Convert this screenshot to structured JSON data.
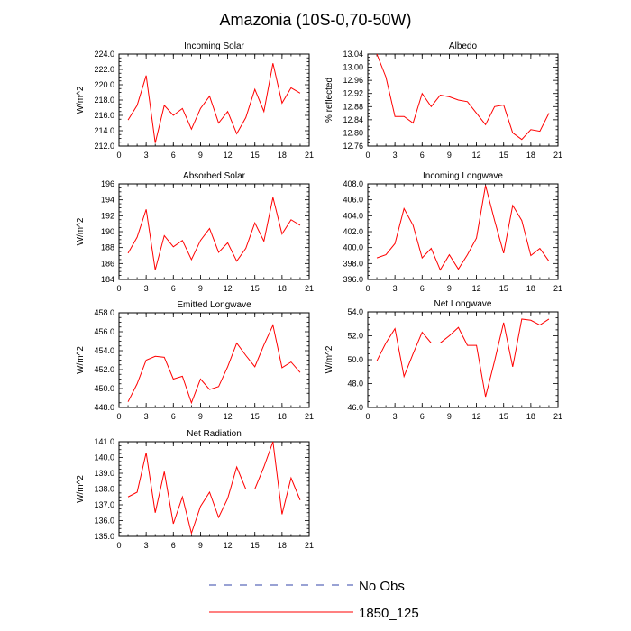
{
  "title": "Amazonia (10S-0,70-50W)",
  "legend": [
    {
      "label": "No Obs",
      "color": "#3344aa",
      "dash": true
    },
    {
      "label": "1850_125",
      "color": "#ff0000",
      "dash": false
    }
  ],
  "chart_data": [
    {
      "type": "line",
      "title": "Incoming Solar",
      "ylabel": "W/m^2",
      "xlim": [
        0,
        21
      ],
      "xticks": [
        "0",
        "3",
        "6",
        "9",
        "12",
        "15",
        "18",
        "21"
      ],
      "ylim": [
        212,
        224
      ],
      "yticks": [
        "212.0",
        "214.0",
        "216.0",
        "218.0",
        "220.0",
        "222.0",
        "224.0"
      ],
      "series": [
        {
          "color": "#ff0000",
          "x": [
            1,
            2,
            3,
            4,
            5,
            6,
            7,
            8,
            9,
            10,
            11,
            12,
            13,
            14,
            15,
            16,
            17,
            18,
            19,
            20
          ],
          "y": [
            215.4,
            217.3,
            221.2,
            212.4,
            217.3,
            216.0,
            216.9,
            214.2,
            216.9,
            218.5,
            215.0,
            216.5,
            213.6,
            215.7,
            219.4,
            216.5,
            222.8,
            217.6,
            219.6,
            218.9
          ]
        }
      ]
    },
    {
      "type": "line",
      "title": "Albedo",
      "ylabel": "% reflected",
      "xlim": [
        0,
        21
      ],
      "xticks": [
        "0",
        "3",
        "6",
        "9",
        "12",
        "15",
        "18",
        "21"
      ],
      "ylim": [
        12.76,
        13.04
      ],
      "yticks": [
        "12.76",
        "12.80",
        "12.84",
        "12.88",
        "12.92",
        "12.96",
        "13.00",
        "13.04"
      ],
      "series": [
        {
          "color": "#ff0000",
          "x": [
            1,
            2,
            3,
            4,
            5,
            6,
            7,
            8,
            9,
            10,
            11,
            12,
            13,
            14,
            15,
            16,
            17,
            18,
            19,
            20
          ],
          "y": [
            13.04,
            12.97,
            12.85,
            12.85,
            12.83,
            12.92,
            12.88,
            12.915,
            12.91,
            12.9,
            12.895,
            12.86,
            12.825,
            12.88,
            12.885,
            12.8,
            12.78,
            12.81,
            12.805,
            12.86
          ]
        }
      ]
    },
    {
      "type": "line",
      "title": "Absorbed Solar",
      "ylabel": "W/m^2",
      "xlim": [
        0,
        21
      ],
      "xticks": [
        "0",
        "3",
        "6",
        "9",
        "12",
        "15",
        "18",
        "21"
      ],
      "ylim": [
        184,
        196
      ],
      "yticks": [
        "184",
        "186",
        "188",
        "190",
        "192",
        "194",
        "196"
      ],
      "series": [
        {
          "color": "#ff0000",
          "x": [
            1,
            2,
            3,
            4,
            5,
            6,
            7,
            8,
            9,
            10,
            11,
            12,
            13,
            14,
            15,
            16,
            17,
            18,
            19,
            20
          ],
          "y": [
            187.3,
            189.3,
            192.8,
            185.2,
            189.5,
            188.1,
            188.9,
            186.5,
            188.9,
            190.4,
            187.4,
            188.6,
            186.3,
            187.9,
            191.1,
            188.8,
            194.3,
            189.7,
            191.5,
            190.8
          ]
        }
      ]
    },
    {
      "type": "line",
      "title": "Incoming Longwave",
      "ylabel": "",
      "xlim": [
        0,
        21
      ],
      "xticks": [
        "0",
        "3",
        "6",
        "9",
        "12",
        "15",
        "18",
        "21"
      ],
      "ylim": [
        396,
        408
      ],
      "yticks": [
        "396.0",
        "398.0",
        "400.0",
        "402.0",
        "404.0",
        "406.0",
        "408.0"
      ],
      "series": [
        {
          "color": "#ff0000",
          "x": [
            1,
            2,
            3,
            4,
            5,
            6,
            7,
            8,
            9,
            10,
            11,
            12,
            13,
            14,
            15,
            16,
            17,
            18,
            19,
            20
          ],
          "y": [
            398.7,
            399.1,
            400.5,
            404.9,
            402.8,
            398.7,
            399.9,
            397.2,
            399.1,
            397.3,
            399.1,
            401.2,
            407.8,
            403.4,
            399.3,
            405.3,
            403.4,
            399.0,
            399.9,
            398.3
          ]
        }
      ]
    },
    {
      "type": "line",
      "title": "Emitted Longwave",
      "ylabel": "W/m^2",
      "xlim": [
        0,
        21
      ],
      "xticks": [
        "0",
        "3",
        "6",
        "9",
        "12",
        "15",
        "18",
        "21"
      ],
      "ylim": [
        448,
        458
      ],
      "yticks": [
        "448.0",
        "450.0",
        "452.0",
        "454.0",
        "456.0",
        "458.0"
      ],
      "series": [
        {
          "color": "#ff0000",
          "x": [
            1,
            2,
            3,
            4,
            5,
            6,
            7,
            8,
            9,
            10,
            11,
            12,
            13,
            14,
            15,
            16,
            17,
            18,
            19,
            20
          ],
          "y": [
            448.6,
            450.5,
            453.0,
            453.4,
            453.3,
            451.0,
            451.3,
            448.5,
            451.0,
            449.9,
            450.2,
            452.3,
            454.8,
            453.5,
            452.3,
            454.6,
            456.7,
            452.2,
            452.8,
            451.7
          ]
        }
      ]
    },
    {
      "type": "line",
      "title": "Net Longwave",
      "ylabel": "W/m^2",
      "xlim": [
        0,
        21
      ],
      "xticks": [
        "0",
        "3",
        "6",
        "9",
        "12",
        "15",
        "18",
        "21"
      ],
      "ylim": [
        46,
        54
      ],
      "yticks": [
        "46.0",
        "48.0",
        "50.0",
        "52.0",
        "54.0"
      ],
      "series": [
        {
          "color": "#ff0000",
          "x": [
            1,
            2,
            3,
            4,
            5,
            6,
            7,
            8,
            9,
            10,
            11,
            12,
            13,
            14,
            15,
            16,
            17,
            18,
            19,
            20
          ],
          "y": [
            49.9,
            51.4,
            52.6,
            48.6,
            50.5,
            52.3,
            51.4,
            51.4,
            52.0,
            52.7,
            51.2,
            51.2,
            46.9,
            49.9,
            53.1,
            49.4,
            53.4,
            53.3,
            52.9,
            53.4
          ]
        }
      ]
    },
    {
      "type": "line",
      "title": "Net Radiation",
      "ylabel": "W/m^2",
      "xlim": [
        0,
        21
      ],
      "xticks": [
        "0",
        "3",
        "6",
        "9",
        "12",
        "15",
        "18",
        "21"
      ],
      "ylim": [
        135,
        141
      ],
      "yticks": [
        "135.0",
        "136.0",
        "137.0",
        "138.0",
        "139.0",
        "140.0",
        "141.0"
      ],
      "series": [
        {
          "color": "#ff0000",
          "x": [
            1,
            2,
            3,
            4,
            5,
            6,
            7,
            8,
            9,
            10,
            11,
            12,
            13,
            14,
            15,
            16,
            17,
            18,
            19,
            20
          ],
          "y": [
            137.5,
            137.8,
            140.3,
            136.5,
            139.1,
            135.8,
            137.5,
            135.2,
            136.9,
            137.8,
            136.2,
            137.4,
            139.4,
            138.0,
            138.0,
            139.4,
            141.0,
            136.4,
            138.7,
            137.3
          ]
        }
      ]
    }
  ]
}
